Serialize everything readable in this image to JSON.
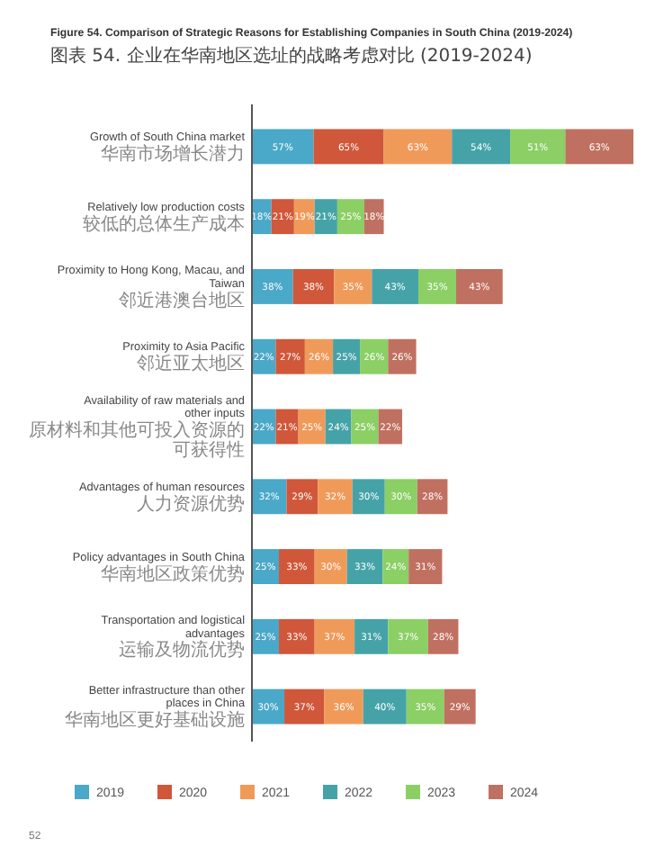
{
  "chart_data": {
    "type": "bar",
    "orientation": "horizontal",
    "stacked": true,
    "title": "Figure 54. Comparison of Strategic Reasons for Establishing Companies in South China (2019-2024)",
    "subtitle": "图表 54. 企业在华南地区选址的战略考虑对比 (2019-2024)",
    "categories": [
      "Growth of South China market\n华南市场增长潜力",
      "Relatively low production costs\n较低的总体生产成本",
      "Proximity to Hong Kong, Macau, and Taiwan\n邻近港澳台地区",
      "Proximity to Asia Pacific\n邻近亚太地区",
      "Availability of raw materials and other inputs\n原材料和其他可投入资源的可获得性",
      "Advantages of human resources\n人力资源优势",
      "Policy advantages in South China\n华南地区政策优势",
      "Transportation and logistical advantages\n运输及物流优势",
      "Better infrastructure than other places in China\n华南地区更好基础设施"
    ],
    "series": [
      {
        "name": "2019",
        "color": "#4aa8c8",
        "values": [
          57,
          18,
          38,
          22,
          22,
          32,
          25,
          25,
          30
        ],
        "value_labels": [
          "57%",
          "18%",
          "38%",
          "22%",
          "22%",
          "32%",
          "25%",
          "25%",
          "30%"
        ]
      },
      {
        "name": "2020",
        "color": "#d0573a",
        "values": [
          65,
          21,
          38,
          27,
          21,
          29,
          33,
          33,
          37
        ],
        "value_labels": [
          "65%",
          "21%",
          "38%",
          "27%",
          "21%",
          "29%",
          "33%",
          "33%",
          "37%"
        ]
      },
      {
        "name": "2021",
        "color": "#f09a5a",
        "values": [
          63,
          19,
          35,
          26,
          25,
          32,
          30,
          37,
          36
        ],
        "value_labels": [
          "63%",
          "19%",
          "35%",
          "26%",
          "25%",
          "32%",
          "30%",
          "37%",
          "36%"
        ]
      },
      {
        "name": "2022",
        "color": "#45a3a8",
        "values": [
          54,
          21,
          43,
          25,
          24,
          30,
          33,
          31,
          40
        ],
        "value_labels": [
          "54%",
          "21%",
          "43%",
          "25%",
          "24%",
          "30%",
          "33%",
          "31%",
          "40%"
        ]
      },
      {
        "name": "2023",
        "color": "#8bcf65",
        "values": [
          51,
          25,
          35,
          26,
          25,
          30,
          24,
          37,
          35
        ],
        "value_labels": [
          "51%",
          "25%",
          "35%",
          "26%",
          "25%",
          "30%",
          "24%",
          "37%",
          "35%"
        ]
      },
      {
        "name": "2024",
        "color": "#c07060",
        "values": [
          63,
          18,
          43,
          26,
          22,
          28,
          31,
          28,
          29
        ],
        "value_labels": [
          "63%",
          "18%",
          "43%",
          "26%",
          "22%",
          "28%",
          "31%",
          "28%",
          "29%"
        ]
      }
    ],
    "legend": "bottom",
    "annotations": [
      "52"
    ]
  }
}
